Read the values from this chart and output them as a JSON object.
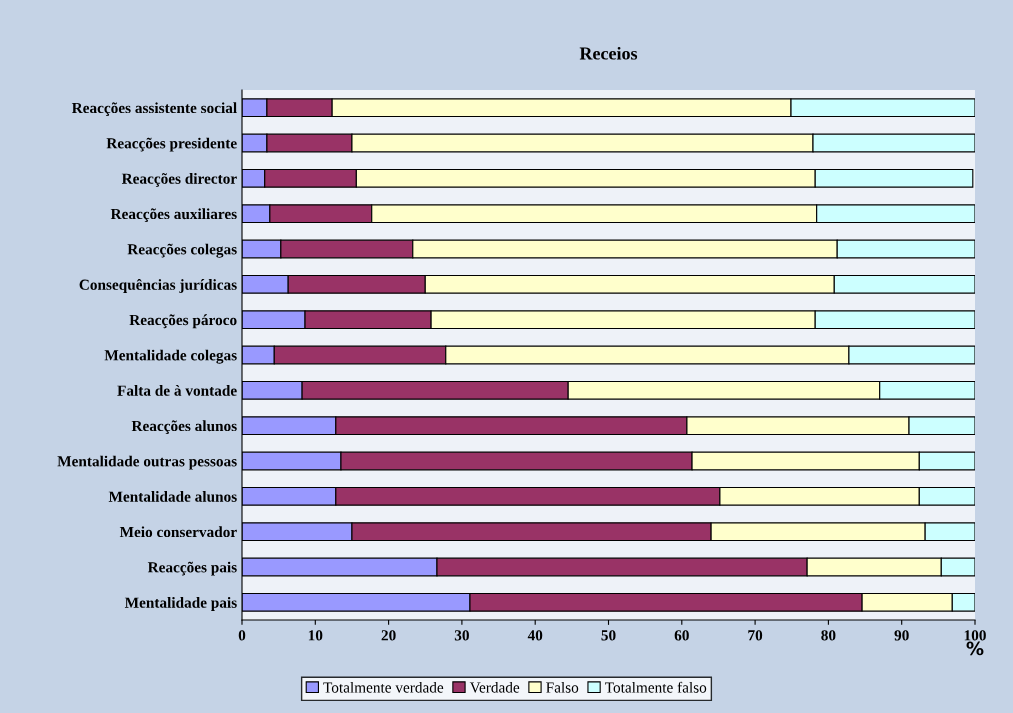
{
  "chart_data": {
    "type": "bar",
    "orientation": "horizontal",
    "stacked": true,
    "title": "Receios",
    "xlabel": "%",
    "categories": [
      "Reacções assistente social",
      "Reacções presidente",
      "Reacções director",
      "Reacções auxiliares",
      "Reacções colegas",
      "Consequências jurídicas",
      "Reacções pároco",
      "Mentalidade colegas",
      "Falta de à vontade",
      "Reacções alunos",
      "Mentalidade outras pessoas",
      "Mentalidade alunos",
      "Meio conservador",
      "Reacções pais",
      "Mentalidade pais"
    ],
    "series": [
      {
        "name": "Totalmente verdade",
        "color": "#9999ff",
        "values": [
          3.4,
          3.4,
          3.1,
          3.8,
          5.3,
          6.3,
          8.6,
          4.4,
          8.2,
          12.8,
          13.5,
          12.8,
          15.0,
          26.6,
          31.1
        ]
      },
      {
        "name": "Verdade",
        "color": "#993366",
        "values": [
          8.9,
          11.6,
          12.5,
          13.9,
          18.0,
          18.7,
          17.2,
          23.4,
          36.3,
          47.9,
          47.9,
          52.4,
          49.0,
          50.5,
          53.5
        ]
      },
      {
        "name": "Falso",
        "color": "#ffffcc",
        "values": [
          62.6,
          62.9,
          62.6,
          60.7,
          57.9,
          55.8,
          52.4,
          55.0,
          42.5,
          30.3,
          31.0,
          27.2,
          29.2,
          18.3,
          12.3
        ]
      },
      {
        "name": "Totalmente falso",
        "color": "#ccffff",
        "values": [
          25.1,
          22.1,
          21.5,
          21.6,
          18.8,
          19.2,
          21.8,
          17.2,
          13.0,
          9.0,
          7.6,
          7.6,
          6.8,
          4.6,
          3.1
        ]
      }
    ],
    "xlim": [
      0,
      100
    ],
    "xticks": [
      0,
      10,
      20,
      30,
      40,
      50,
      60,
      70,
      80,
      90,
      100
    ],
    "grid": false,
    "legend": "bottom"
  }
}
